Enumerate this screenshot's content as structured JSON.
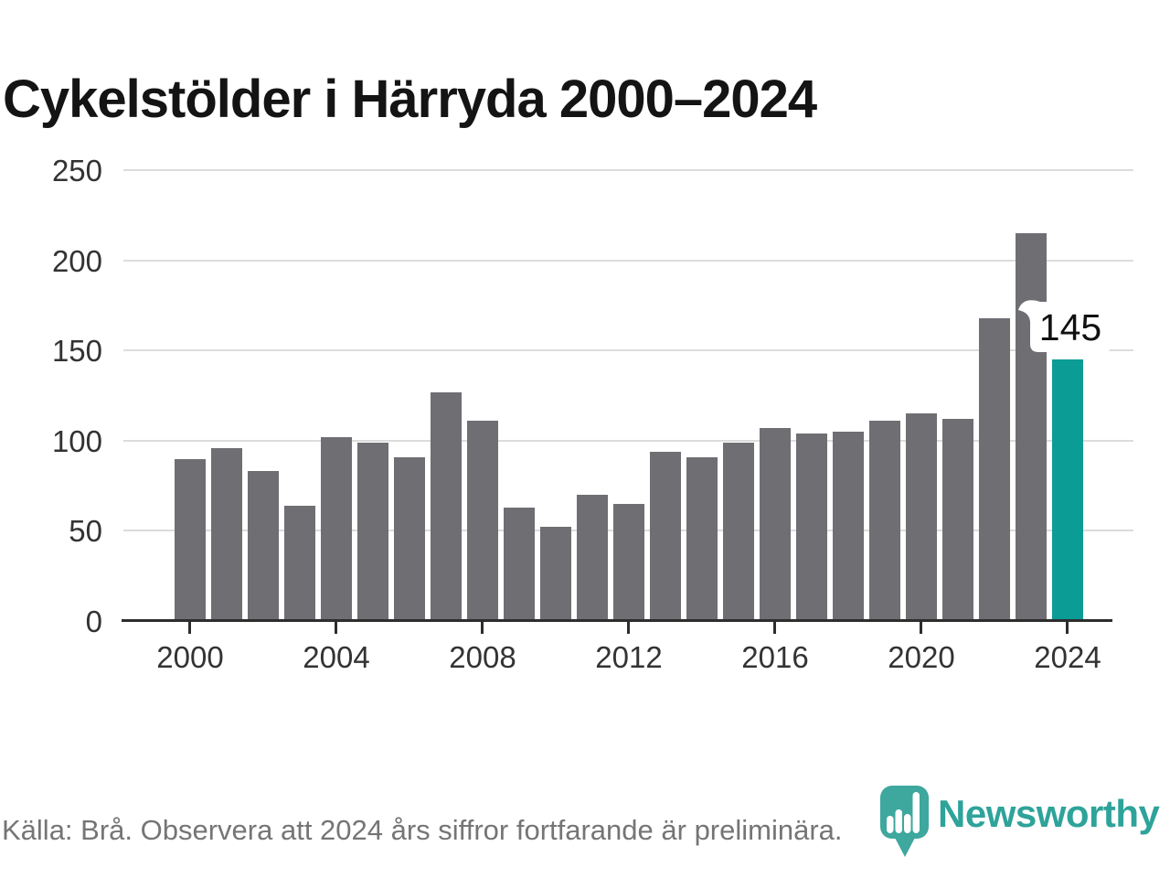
{
  "title": "Cykelstölder i Härryda 2000–2024",
  "source": "Källa: Brå. Observera att 2024 års siffror fortfarande är preliminära.",
  "annotation": {
    "value_label": "145"
  },
  "logo": {
    "text": "Newsworthy",
    "pin_color": "#3ea79e",
    "text_color": "#2ea39a"
  },
  "colors": {
    "bar": "#6e6e73",
    "highlight": "#0a9c95",
    "grid": "#dcdcdc",
    "axis": "#2d2d2d",
    "tick_label": "#333333",
    "source_text": "#757575",
    "title_text": "#141414"
  },
  "chart_data": {
    "type": "bar",
    "title": "Cykelstölder i Härryda 2000–2024",
    "categories": [
      2000,
      2001,
      2002,
      2003,
      2004,
      2005,
      2006,
      2007,
      2008,
      2009,
      2010,
      2011,
      2012,
      2013,
      2014,
      2015,
      2016,
      2017,
      2018,
      2019,
      2020,
      2021,
      2022,
      2023,
      2024
    ],
    "values": [
      90,
      96,
      83,
      64,
      102,
      99,
      91,
      127,
      111,
      63,
      52,
      70,
      65,
      94,
      91,
      99,
      107,
      104,
      105,
      111,
      115,
      112,
      168,
      215,
      145
    ],
    "highlight_index": 24,
    "highlight_label": "145",
    "y_ticks": [
      0,
      50,
      100,
      150,
      200,
      250
    ],
    "y_tick_labels": [
      "0",
      "50",
      "100",
      "150",
      "200",
      "250"
    ],
    "x_tick_labels": [
      "2000",
      "2004",
      "2008",
      "2012",
      "2016",
      "2020",
      "2024"
    ],
    "ylim": [
      0,
      250
    ],
    "xlabel": "",
    "ylabel": "",
    "grid": true,
    "legend": false
  }
}
